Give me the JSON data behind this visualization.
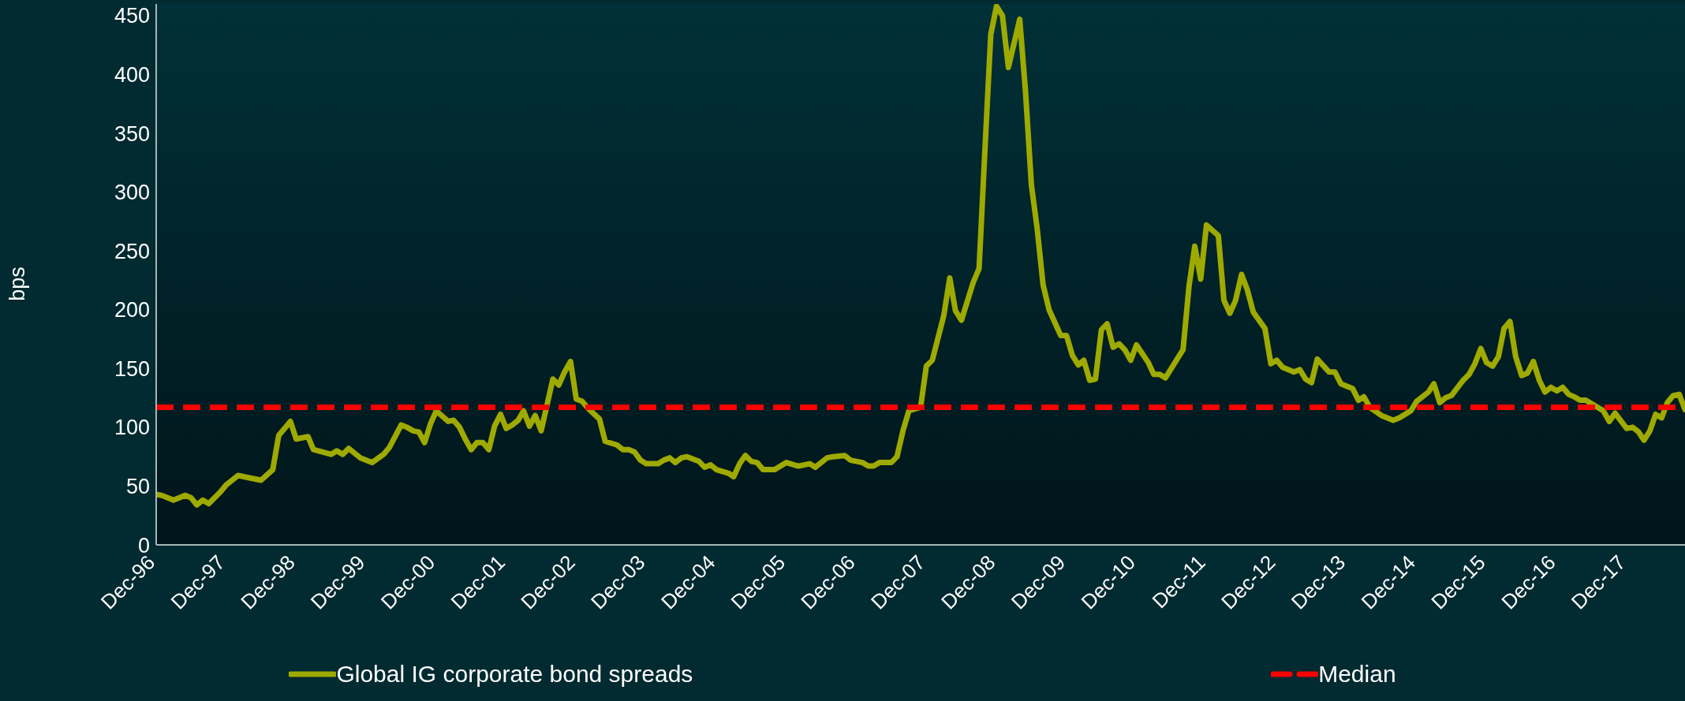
{
  "chart_data": {
    "type": "line",
    "ylabel": "bps",
    "legend": "bottom",
    "x": [
      "1996-12",
      "1997-01",
      "1997-03",
      "1997-05",
      "1997-06",
      "1997-07",
      "1997-08",
      "1997-09",
      "1997-11",
      "1997-12",
      "1998-02",
      "1998-04",
      "1998-06",
      "1998-08",
      "1998-09",
      "1998-11",
      "1998-12",
      "1999-02",
      "1999-03",
      "1999-06",
      "1999-07",
      "1999-08",
      "1999-09",
      "1999-11",
      "2000-01",
      "2000-03",
      "2000-04",
      "2000-06",
      "2000-07",
      "2000-08",
      "2000-09",
      "2000-10",
      "2000-11",
      "2000-12",
      "2001-02",
      "2001-03",
      "2001-04",
      "2001-05",
      "2001-06",
      "2001-07",
      "2001-08",
      "2001-09",
      "2001-10",
      "2001-11",
      "2001-12",
      "2002-01",
      "2002-02",
      "2002-03",
      "2002-04",
      "2002-05",
      "2002-06",
      "2002-08",
      "2002-09",
      "2002-10",
      "2002-11",
      "2002-12",
      "2003-01",
      "2003-02",
      "2003-04",
      "2003-05",
      "2003-07",
      "2003-08",
      "2003-09",
      "2003-10",
      "2003-11",
      "2003-12",
      "2004-02",
      "2004-03",
      "2004-04",
      "2004-05",
      "2004-06",
      "2004-07",
      "2004-08",
      "2004-09",
      "2004-10",
      "2004-11",
      "2004-12",
      "2005-02",
      "2005-03",
      "2005-04",
      "2005-05",
      "2005-06",
      "2005-07",
      "2005-08",
      "2005-10",
      "2005-12",
      "2006-02",
      "2006-04",
      "2006-05",
      "2006-07",
      "2006-08",
      "2006-10",
      "2006-11",
      "2007-01",
      "2007-02",
      "2007-03",
      "2007-04",
      "2007-06",
      "2007-07",
      "2007-08",
      "2007-09",
      "2007-11",
      "2007-12",
      "2008-01",
      "2008-03",
      "2008-04",
      "2008-05",
      "2008-06",
      "2008-08",
      "2008-09",
      "2008-10",
      "2008-11",
      "2008-12",
      "2009-01",
      "2009-02",
      "2009-04",
      "2009-05",
      "2009-06",
      "2009-07",
      "2009-08",
      "2009-09",
      "2009-11",
      "2009-12",
      "2010-01",
      "2010-02",
      "2010-03",
      "2010-04",
      "2010-05",
      "2010-06",
      "2010-07",
      "2010-08",
      "2010-09",
      "2010-10",
      "2010-11",
      "2010-12",
      "2011-02",
      "2011-03",
      "2011-04",
      "2011-05",
      "2011-07",
      "2011-08",
      "2011-09",
      "2011-10",
      "2011-11",
      "2011-12",
      "2012-02",
      "2012-03",
      "2012-04",
      "2012-05",
      "2012-06",
      "2012-07",
      "2012-08",
      "2012-10",
      "2012-11",
      "2012-12",
      "2013-01",
      "2013-03",
      "2013-04",
      "2013-05",
      "2013-06",
      "2013-07",
      "2013-09",
      "2013-10",
      "2013-11",
      "2014-01",
      "2014-02",
      "2014-03",
      "2014-04",
      "2014-06",
      "2014-08",
      "2014-09",
      "2014-11",
      "2014-12",
      "2015-02",
      "2015-03",
      "2015-04",
      "2015-05",
      "2015-06",
      "2015-08",
      "2015-09",
      "2015-10",
      "2015-11",
      "2015-12",
      "2016-01",
      "2016-02",
      "2016-03",
      "2016-04",
      "2016-05",
      "2016-06",
      "2016-07",
      "2016-08",
      "2016-09",
      "2016-10",
      "2016-11",
      "2016-12",
      "2017-01",
      "2017-02",
      "2017-03",
      "2017-04",
      "2017-05",
      "2017-06",
      "2017-08",
      "2017-09",
      "2017-10",
      "2017-12",
      "2018-01",
      "2018-02",
      "2018-03",
      "2018-04",
      "2018-05",
      "2018-06",
      "2018-07",
      "2018-08",
      "2018-09",
      "2018-10"
    ],
    "series": [
      {
        "name": "Global IG corporate bond spreads",
        "color": "#9eaa00",
        "values": [
          43,
          42,
          38,
          42,
          40,
          34,
          38,
          35,
          45,
          51,
          59,
          57,
          55,
          64,
          93,
          105,
          90,
          92,
          81,
          77,
          80,
          77,
          82,
          74,
          70,
          77,
          83,
          102,
          100,
          97,
          96,
          87,
          103,
          114,
          105,
          106,
          100,
          90,
          81,
          87,
          87,
          81,
          101,
          111,
          99,
          102,
          106,
          114,
          101,
          110,
          97,
          141,
          136,
          147,
          156,
          124,
          122,
          116,
          107,
          88,
          85,
          81,
          81,
          79,
          72,
          69,
          69,
          72,
          74,
          70,
          74,
          75,
          73,
          71,
          66,
          68,
          64,
          61,
          58,
          69,
          76,
          71,
          70,
          64,
          64,
          70,
          67,
          69,
          66,
          74,
          75,
          76,
          72,
          70,
          67,
          67,
          70,
          70,
          75,
          97,
          114,
          117,
          152,
          157,
          195,
          227,
          199,
          191,
          223,
          235,
          334,
          434,
          458,
          450,
          406,
          447,
          386,
          306,
          269,
          221,
          200,
          178,
          178,
          161,
          153,
          157,
          140,
          141,
          183,
          188,
          168,
          171,
          166,
          157,
          170,
          155,
          145,
          145,
          142,
          158,
          166,
          220,
          254,
          226,
          272,
          263,
          208,
          197,
          208,
          230,
          217,
          198,
          184,
          154,
          157,
          151,
          147,
          149,
          141,
          138,
          158,
          147,
          147,
          137,
          133,
          123,
          126,
          117,
          110,
          106,
          108,
          114,
          122,
          130,
          137,
          121,
          125,
          127,
          140,
          145,
          154,
          167,
          155,
          152,
          160,
          184,
          190,
          160,
          144,
          146,
          156,
          140,
          130,
          134,
          131,
          134,
          128,
          126,
          123,
          123,
          120,
          114,
          105,
          112,
          99,
          100,
          96,
          89,
          97,
          111,
          108,
          121,
          127,
          128,
          115
        ]
      }
    ],
    "ref_lines": [
      {
        "axis": "y",
        "value": 117,
        "label": "Median",
        "color": "#ff0000",
        "line_style": "dashed"
      }
    ],
    "xlim": [
      "1996-12",
      "2018-10"
    ],
    "xticks": [
      {
        "value": "1996-12",
        "label": "Dec-96"
      },
      {
        "value": "1997-12",
        "label": "Dec-97"
      },
      {
        "value": "1998-12",
        "label": "Dec-98"
      },
      {
        "value": "1999-12",
        "label": "Dec-99"
      },
      {
        "value": "2000-12",
        "label": "Dec-00"
      },
      {
        "value": "2001-12",
        "label": "Dec-01"
      },
      {
        "value": "2002-12",
        "label": "Dec-02"
      },
      {
        "value": "2003-12",
        "label": "Dec-03"
      },
      {
        "value": "2004-12",
        "label": "Dec-04"
      },
      {
        "value": "2005-12",
        "label": "Dec-05"
      },
      {
        "value": "2006-12",
        "label": "Dec-06"
      },
      {
        "value": "2007-12",
        "label": "Dec-07"
      },
      {
        "value": "2008-12",
        "label": "Dec-08"
      },
      {
        "value": "2009-12",
        "label": "Dec-09"
      },
      {
        "value": "2010-12",
        "label": "Dec-10"
      },
      {
        "value": "2011-12",
        "label": "Dec-11"
      },
      {
        "value": "2012-12",
        "label": "Dec-12"
      },
      {
        "value": "2013-12",
        "label": "Dec-13"
      },
      {
        "value": "2014-12",
        "label": "Dec-14"
      },
      {
        "value": "2015-12",
        "label": "Dec-15"
      },
      {
        "value": "2016-12",
        "label": "Dec-16"
      },
      {
        "value": "2017-12",
        "label": "Dec-17"
      }
    ],
    "ylim": [
      0,
      460
    ],
    "yticks": [
      0,
      50,
      100,
      150,
      200,
      250,
      300,
      350,
      400,
      450
    ]
  }
}
